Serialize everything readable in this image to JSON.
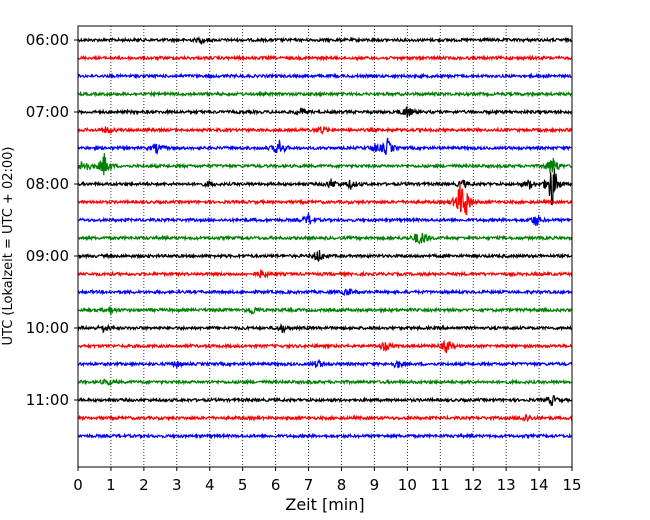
{
  "chart_data": {
    "type": "line",
    "title": "",
    "xlabel": "Zeit  [min]",
    "ylabel": "UTC (Lokalzeit = UTC + 02:00)",
    "xlim": [
      0,
      15
    ],
    "x_ticks": [
      0,
      1,
      2,
      3,
      4,
      5,
      6,
      7,
      8,
      9,
      10,
      11,
      12,
      13,
      14,
      15
    ],
    "x_tick_labels": [
      "0",
      "1",
      "2",
      "3",
      "4",
      "5",
      "6",
      "7",
      "8",
      "9",
      "10",
      "11",
      "12",
      "13",
      "14",
      "15"
    ],
    "y_tick_labels": [
      "06:00",
      "07:00",
      "08:00",
      "09:00",
      "10:00",
      "11:00"
    ],
    "grid": "vertical dotted",
    "legend": "none",
    "trace_interval_min": 15,
    "trace_colors": [
      "#000000",
      "#ff0000",
      "#0000ff",
      "#008000"
    ],
    "traces": [
      {
        "start": "06:00",
        "events": [
          [
            3.75,
            3
          ]
        ]
      },
      {
        "start": "06:15",
        "events": []
      },
      {
        "start": "06:30",
        "events": []
      },
      {
        "start": "06:45",
        "events": []
      },
      {
        "start": "07:00",
        "events": [
          [
            6.8,
            4
          ],
          [
            10.0,
            6
          ]
        ]
      },
      {
        "start": "07:15",
        "events": [
          [
            0.9,
            4
          ],
          [
            7.4,
            4
          ]
        ]
      },
      {
        "start": "07:30",
        "events": [
          [
            6.1,
            9
          ],
          [
            9.0,
            4
          ],
          [
            9.4,
            9
          ],
          [
            2.4,
            5
          ]
        ]
      },
      {
        "start": "07:45",
        "events": [
          [
            0.2,
            8
          ],
          [
            0.8,
            12
          ],
          [
            14.4,
            11
          ]
        ]
      },
      {
        "start": "08:00",
        "events": [
          [
            4.0,
            3
          ],
          [
            7.7,
            5
          ],
          [
            8.3,
            5
          ],
          [
            11.7,
            4
          ],
          [
            13.7,
            5
          ],
          [
            14.4,
            26
          ]
        ]
      },
      {
        "start": "08:15",
        "events": [
          [
            11.6,
            17
          ],
          [
            11.8,
            12
          ]
        ]
      },
      {
        "start": "08:30",
        "events": [
          [
            7.0,
            6
          ],
          [
            13.9,
            6
          ]
        ]
      },
      {
        "start": "08:45",
        "events": [
          [
            10.3,
            5
          ],
          [
            10.5,
            5
          ]
        ]
      },
      {
        "start": "09:00",
        "events": [
          [
            7.3,
            7
          ]
        ]
      },
      {
        "start": "09:15",
        "events": [
          [
            5.6,
            5
          ]
        ]
      },
      {
        "start": "09:30",
        "events": [
          [
            8.2,
            4
          ]
        ]
      },
      {
        "start": "09:45",
        "events": [
          [
            1.0,
            4
          ],
          [
            5.3,
            4
          ]
        ]
      },
      {
        "start": "10:00",
        "events": [
          [
            0.8,
            4
          ],
          [
            6.2,
            4
          ]
        ]
      },
      {
        "start": "10:15",
        "events": [
          [
            9.3,
            5
          ],
          [
            11.2,
            7
          ]
        ]
      },
      {
        "start": "10:30",
        "events": [
          [
            3.0,
            3
          ],
          [
            7.3,
            4
          ],
          [
            9.7,
            4
          ]
        ]
      },
      {
        "start": "10:45",
        "events": [
          [
            0.9,
            3
          ]
        ]
      },
      {
        "start": "11:00",
        "events": [
          [
            14.4,
            5
          ]
        ]
      },
      {
        "start": "11:15",
        "events": [
          [
            13.6,
            4
          ]
        ]
      },
      {
        "start": "11:30",
        "events": []
      }
    ]
  }
}
